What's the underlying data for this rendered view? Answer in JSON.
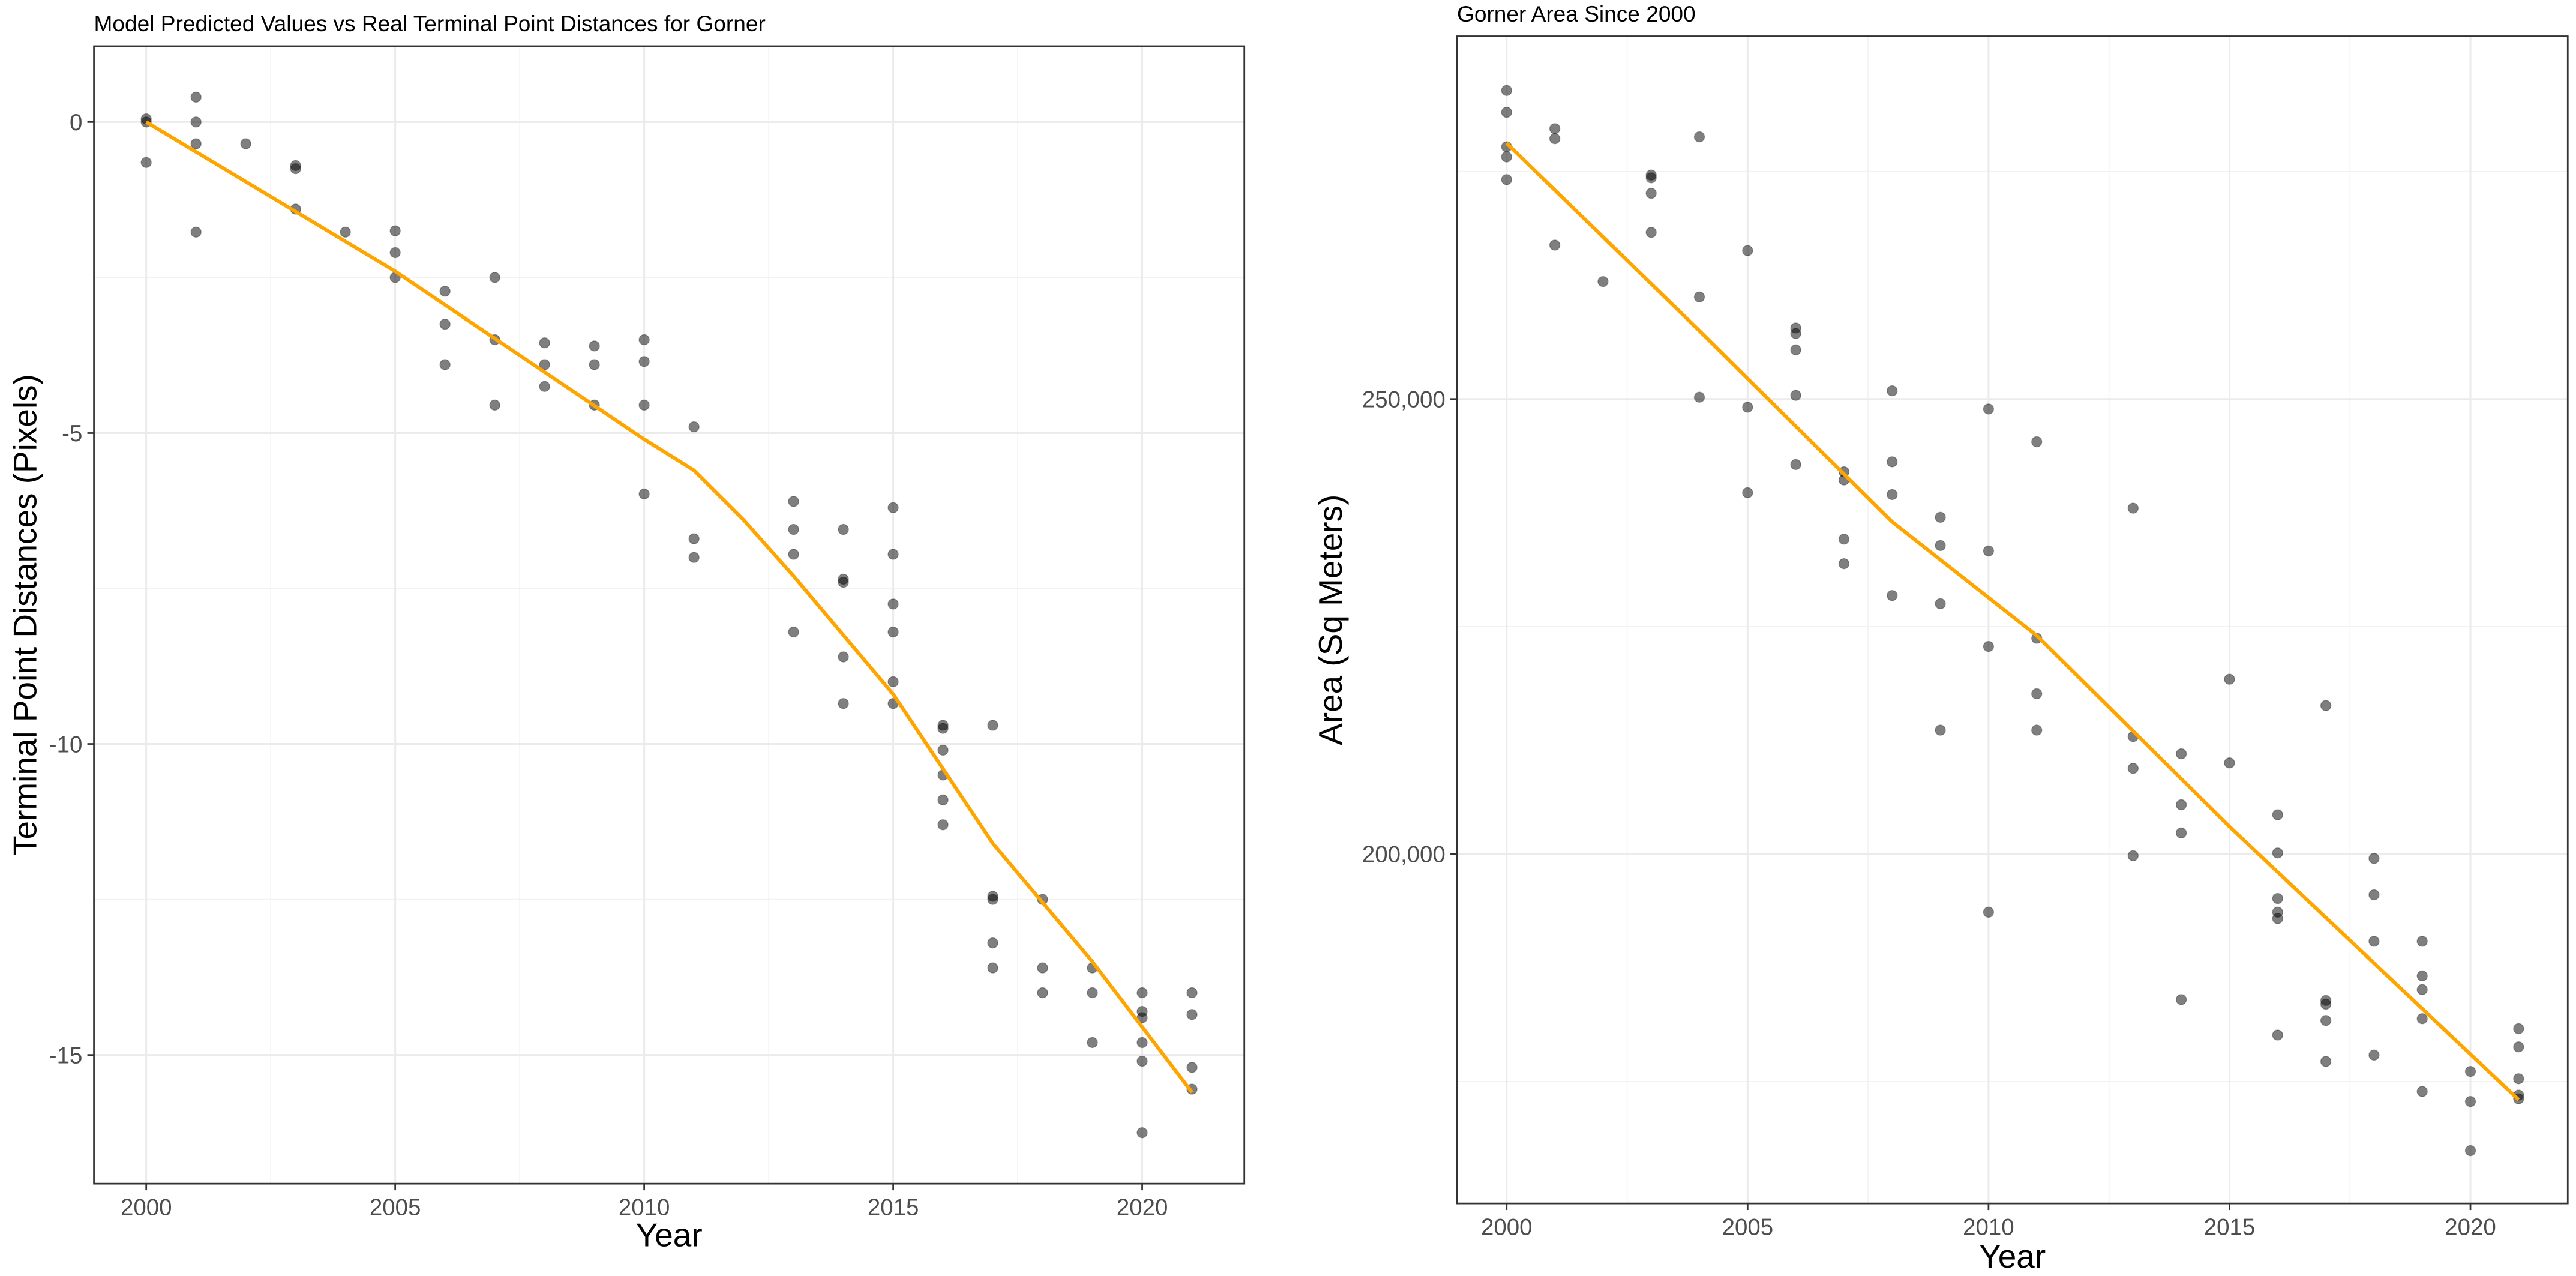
{
  "chart_data": [
    {
      "type": "scatter",
      "title": "Model Predicted Values vs Real Terminal Point Distances for Gorner",
      "x_label": "Year",
      "y_label": "Terminal Point Distances (Pixels)",
      "xlim": [
        1998.95,
        2022.05
      ],
      "ylim": [
        -17.07,
        1.22
      ],
      "xticks": [
        2000,
        2005,
        2010,
        2015,
        2020
      ],
      "yticks": [
        0,
        -5,
        -10,
        -15
      ],
      "x_minor_ticks": [
        2002.5,
        2007.5,
        2012.5,
        2017.5
      ],
      "y_minor_ticks": [
        -2.5,
        -7.5,
        -12.5
      ],
      "grid": true,
      "points": {
        "color": "#000000",
        "alpha": 0.5,
        "x": [
          2000,
          2000,
          2000,
          2001,
          2001,
          2001,
          2001,
          2002,
          2003,
          2003,
          2003,
          2004,
          2005,
          2005,
          2005,
          2006,
          2006,
          2006,
          2007,
          2007,
          2007,
          2008,
          2008,
          2008,
          2009,
          2009,
          2009,
          2010,
          2010,
          2010,
          2010,
          2011,
          2011,
          2011,
          2013,
          2013,
          2013,
          2013,
          2014,
          2014,
          2014,
          2014,
          2014,
          2015,
          2015,
          2015,
          2015,
          2015,
          2015,
          2016,
          2016,
          2016,
          2016,
          2016,
          2016,
          2017,
          2017,
          2017,
          2017,
          2017,
          2018,
          2018,
          2018,
          2019,
          2019,
          2019,
          2020,
          2020,
          2020,
          2020,
          2020,
          2020,
          2021,
          2021,
          2021,
          2021
        ],
        "y": [
          0.05,
          0,
          -0.65,
          0.4,
          0,
          -0.35,
          -1.77,
          -0.35,
          -0.7,
          -0.75,
          -1.4,
          -1.77,
          -1.75,
          -2.1,
          -2.5,
          -2.72,
          -3.25,
          -3.9,
          -2.5,
          -3.5,
          -4.55,
          -3.55,
          -3.9,
          -4.25,
          -3.6,
          -3.9,
          -4.55,
          -3.5,
          -3.85,
          -4.55,
          -5.98,
          -4.9,
          -6.7,
          -7.0,
          -6.1,
          -6.55,
          -6.95,
          -8.2,
          -6.55,
          -7.35,
          -7.4,
          -8.6,
          -9.35,
          -6.2,
          -6.95,
          -7.75,
          -8.2,
          -9.0,
          -9.35,
          -9.7,
          -9.75,
          -10.1,
          -10.5,
          -10.9,
          -11.3,
          -9.7,
          -12.45,
          -12.5,
          -13.2,
          -13.6,
          -12.5,
          -13.6,
          -14.0,
          -13.6,
          -14.0,
          -14.8,
          -14.0,
          -14.3,
          -14.4,
          -14.8,
          -15.1,
          -16.25,
          -14.0,
          -14.35,
          -15.2,
          -15.55
        ]
      },
      "fit": {
        "color": "#FFA500",
        "x": [
          2000,
          2005,
          2010,
          2011,
          2012,
          2013,
          2015,
          2017,
          2019,
          2021
        ],
        "y": [
          0,
          -2.4,
          -5.1,
          -5.6,
          -6.4,
          -7.3,
          -9.2,
          -11.6,
          -13.5,
          -15.6
        ]
      }
    },
    {
      "type": "scatter",
      "title": "Gorner Area Since 2000",
      "x_label": "Year",
      "y_label": "Area (Sq Meters)",
      "xlim": [
        1998.97,
        2022.02
      ],
      "ylim": [
        161594,
        289855
      ],
      "xticks": [
        2000,
        2005,
        2010,
        2015,
        2020
      ],
      "yticks": [
        {
          "value": 200000,
          "label": "200,000"
        },
        {
          "value": 250000,
          "label": "250,000"
        }
      ],
      "x_minor_ticks": [
        2002.5,
        2007.5,
        2012.5,
        2017.5
      ],
      "y_minor_ticks": [
        175000,
        225000,
        275000
      ],
      "grid": true,
      "points": {
        "color": "#000000",
        "alpha": 0.5,
        "x": [
          2000,
          2000,
          2000,
          2000,
          2000,
          2001,
          2001,
          2001,
          2002,
          2003,
          2003,
          2003,
          2003,
          2004,
          2004,
          2004,
          2005,
          2005,
          2005,
          2006,
          2006,
          2006,
          2006,
          2006,
          2007,
          2007,
          2007,
          2007,
          2008,
          2008,
          2008,
          2008,
          2009,
          2009,
          2009,
          2009,
          2010,
          2010,
          2010,
          2010,
          2011,
          2011,
          2011,
          2011,
          2013,
          2013,
          2013,
          2013,
          2014,
          2014,
          2014,
          2014,
          2015,
          2015,
          2016,
          2016,
          2016,
          2016,
          2016,
          2016,
          2017,
          2017,
          2017,
          2017,
          2017,
          2018,
          2018,
          2018,
          2018,
          2019,
          2019,
          2019,
          2019,
          2019,
          2020,
          2020,
          2020,
          2021,
          2021,
          2021,
          2021,
          2021
        ],
        "y": [
          283900,
          281500,
          277700,
          276600,
          274100,
          279700,
          278600,
          266900,
          262900,
          274600,
          274300,
          272600,
          268300,
          278800,
          261200,
          250200,
          266300,
          249100,
          239700,
          257800,
          257200,
          255400,
          250400,
          242800,
          242000,
          241100,
          234600,
          231900,
          250900,
          243100,
          239500,
          228400,
          237000,
          233900,
          227500,
          213600,
          248900,
          233300,
          222800,
          193600,
          245300,
          223700,
          217600,
          213600,
          238000,
          212900,
          209400,
          199800,
          211000,
          205400,
          202300,
          184000,
          219200,
          210000,
          204300,
          200100,
          195100,
          193600,
          192900,
          180100,
          216300,
          183900,
          183500,
          181700,
          177200,
          199500,
          195500,
          190400,
          177900,
          190400,
          186600,
          185100,
          181900,
          173900,
          176100,
          172800,
          167400,
          180800,
          178800,
          175300,
          173500,
          173100
        ]
      },
      "fit": {
        "color": "#FFA500",
        "x": [
          2000,
          2004,
          2008,
          2011,
          2015,
          2018,
          2021
        ],
        "y": [
          278100,
          257500,
          236500,
          224000,
          203000,
          188000,
          173000
        ]
      }
    }
  ]
}
